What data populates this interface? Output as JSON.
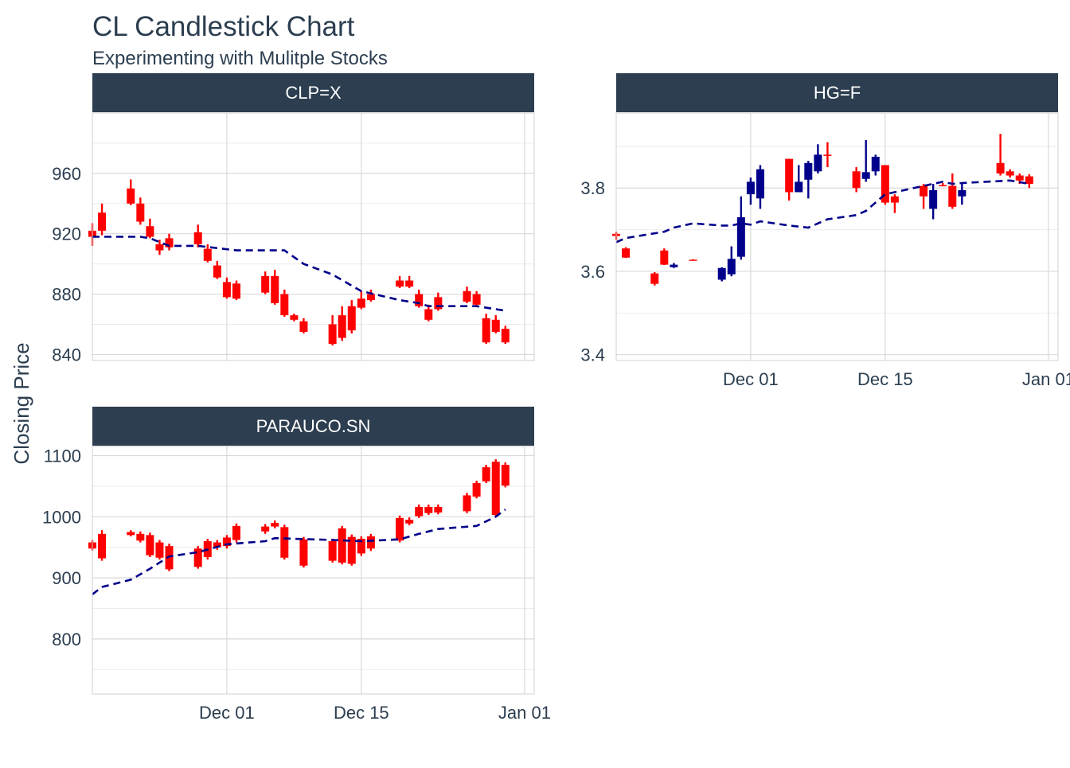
{
  "title": "CL Candlestick Chart",
  "subtitle": "Experimenting with Mulitple Stocks",
  "ylabel": "Closing Price",
  "x_ticks": [
    "Dec 01",
    "Dec 15",
    "Jan 01"
  ],
  "colors": {
    "up": "#00008B",
    "down": "#FF0000",
    "ma": "#00008B",
    "strip": "#2C3E50",
    "grid": "#D9D9D9",
    "text": "#2C3E50"
  },
  "chart_data": [
    {
      "type": "candlestick",
      "facet": "CLP=X",
      "x_type": "date",
      "ylim": [
        836,
        1000
      ],
      "y_ticks": [
        840,
        880,
        920,
        960
      ],
      "x_range": [
        "2020-11-17",
        "2021-01-02"
      ],
      "candles": [
        {
          "d": "2020-11-17",
          "o": 922,
          "h": 927,
          "l": 912,
          "c": 918
        },
        {
          "d": "2020-11-18",
          "o": 934,
          "h": 940,
          "l": 919,
          "c": 922
        },
        {
          "d": "2020-11-21",
          "o": 950,
          "h": 956,
          "l": 939,
          "c": 940
        },
        {
          "d": "2020-11-22",
          "o": 940,
          "h": 944,
          "l": 926,
          "c": 928
        },
        {
          "d": "2020-11-23",
          "o": 925,
          "h": 930,
          "l": 917,
          "c": 918
        },
        {
          "d": "2020-11-24",
          "o": 913,
          "h": 916,
          "l": 906,
          "c": 909
        },
        {
          "d": "2020-11-25",
          "o": 917,
          "h": 920,
          "l": 909,
          "c": 911
        },
        {
          "d": "2020-11-28",
          "o": 921,
          "h": 926,
          "l": 911,
          "c": 913
        },
        {
          "d": "2020-11-29",
          "o": 910,
          "h": 913,
          "l": 901,
          "c": 902
        },
        {
          "d": "2020-11-30",
          "o": 899,
          "h": 902,
          "l": 890,
          "c": 891
        },
        {
          "d": "2020-12-01",
          "o": 888,
          "h": 891,
          "l": 877,
          "c": 878
        },
        {
          "d": "2020-12-02",
          "o": 887,
          "h": 889,
          "l": 876,
          "c": 877
        },
        {
          "d": "2020-12-05",
          "o": 892,
          "h": 895,
          "l": 880,
          "c": 881
        },
        {
          "d": "2020-12-06",
          "o": 892,
          "h": 896,
          "l": 873,
          "c": 874
        },
        {
          "d": "2020-12-07",
          "o": 880,
          "h": 883,
          "l": 865,
          "c": 866
        },
        {
          "d": "2020-12-08",
          "o": 866,
          "h": 867,
          "l": 862,
          "c": 863
        },
        {
          "d": "2020-12-09",
          "o": 862,
          "h": 864,
          "l": 854,
          "c": 855
        },
        {
          "d": "2020-12-12",
          "o": 860,
          "h": 866,
          "l": 846,
          "c": 847
        },
        {
          "d": "2020-12-13",
          "o": 866,
          "h": 872,
          "l": 849,
          "c": 851
        },
        {
          "d": "2020-12-14",
          "o": 872,
          "h": 876,
          "l": 854,
          "c": 856
        },
        {
          "d": "2020-12-15",
          "o": 877,
          "h": 882,
          "l": 870,
          "c": 871
        },
        {
          "d": "2020-12-16",
          "o": 880,
          "h": 883,
          "l": 875,
          "c": 876
        },
        {
          "d": "2020-12-19",
          "o": 889,
          "h": 892,
          "l": 884,
          "c": 885
        },
        {
          "d": "2020-12-20",
          "o": 889,
          "h": 892,
          "l": 884,
          "c": 885
        },
        {
          "d": "2020-12-21",
          "o": 880,
          "h": 883,
          "l": 871,
          "c": 872
        },
        {
          "d": "2020-12-22",
          "o": 870,
          "h": 873,
          "l": 862,
          "c": 863
        },
        {
          "d": "2020-12-23",
          "o": 878,
          "h": 881,
          "l": 869,
          "c": 870
        },
        {
          "d": "2020-12-26",
          "o": 882,
          "h": 885,
          "l": 874,
          "c": 875
        },
        {
          "d": "2020-12-27",
          "o": 880,
          "h": 882,
          "l": 872,
          "c": 873
        },
        {
          "d": "2020-12-28",
          "o": 864,
          "h": 867,
          "l": 847,
          "c": 848
        },
        {
          "d": "2020-12-29",
          "o": 863,
          "h": 866,
          "l": 854,
          "c": 855
        },
        {
          "d": "2020-12-30",
          "o": 857,
          "h": 859,
          "l": 847,
          "c": 848
        }
      ],
      "moving_average": [
        {
          "d": "2020-11-17",
          "v": 918
        },
        {
          "d": "2020-11-18",
          "v": 918
        },
        {
          "d": "2020-11-22",
          "v": 918
        },
        {
          "d": "2020-11-23",
          "v": 917
        },
        {
          "d": "2020-11-25",
          "v": 912
        },
        {
          "d": "2020-11-28",
          "v": 912
        },
        {
          "d": "2020-12-02",
          "v": 909
        },
        {
          "d": "2020-12-05",
          "v": 909
        },
        {
          "d": "2020-12-07",
          "v": 909
        },
        {
          "d": "2020-12-09",
          "v": 900
        },
        {
          "d": "2020-12-12",
          "v": 893
        },
        {
          "d": "2020-12-15",
          "v": 882
        },
        {
          "d": "2020-12-19",
          "v": 876
        },
        {
          "d": "2020-12-21",
          "v": 874
        },
        {
          "d": "2020-12-22",
          "v": 872
        },
        {
          "d": "2020-12-27",
          "v": 872
        },
        {
          "d": "2020-12-29",
          "v": 870
        },
        {
          "d": "2020-12-30",
          "v": 869
        }
      ]
    },
    {
      "type": "candlestick",
      "facet": "HG=F",
      "x_type": "date",
      "ylim": [
        3.386,
        3.98
      ],
      "y_ticks": [
        3.4,
        3.6,
        3.8
      ],
      "x_range": [
        "2020-11-17",
        "2021-01-02"
      ],
      "candles": [
        {
          "d": "2020-11-17",
          "o": 3.69,
          "h": 3.695,
          "l": 3.675,
          "c": 3.685
        },
        {
          "d": "2020-11-18",
          "o": 3.655,
          "h": 3.658,
          "l": 3.632,
          "c": 3.633
        },
        {
          "d": "2020-11-21",
          "o": 3.595,
          "h": 3.598,
          "l": 3.566,
          "c": 3.57
        },
        {
          "d": "2020-11-22",
          "o": 3.65,
          "h": 3.655,
          "l": 3.615,
          "c": 3.616
        },
        {
          "d": "2020-11-23",
          "o": 3.61,
          "h": 3.62,
          "l": 3.608,
          "c": 3.616
        },
        {
          "d": "2020-11-25",
          "o": 3.628,
          "h": 3.629,
          "l": 3.626,
          "c": 3.627
        },
        {
          "d": "2020-11-28",
          "o": 3.58,
          "h": 3.61,
          "l": 3.576,
          "c": 3.608
        },
        {
          "d": "2020-11-29",
          "o": 3.593,
          "h": 3.66,
          "l": 3.588,
          "c": 3.63
        },
        {
          "d": "2020-11-30",
          "o": 3.635,
          "h": 3.78,
          "l": 3.628,
          "c": 3.73
        },
        {
          "d": "2020-12-01",
          "o": 3.785,
          "h": 3.825,
          "l": 3.76,
          "c": 3.815
        },
        {
          "d": "2020-12-02",
          "o": 3.775,
          "h": 3.855,
          "l": 3.75,
          "c": 3.845
        },
        {
          "d": "2020-12-05",
          "o": 3.87,
          "h": 3.87,
          "l": 3.77,
          "c": 3.79
        },
        {
          "d": "2020-12-06",
          "o": 3.79,
          "h": 3.855,
          "l": 3.79,
          "c": 3.815
        },
        {
          "d": "2020-12-07",
          "o": 3.82,
          "h": 3.865,
          "l": 3.775,
          "c": 3.86
        },
        {
          "d": "2020-12-08",
          "o": 3.84,
          "h": 3.905,
          "l": 3.835,
          "c": 3.88
        },
        {
          "d": "2020-12-09",
          "o": 3.88,
          "h": 3.91,
          "l": 3.85,
          "c": 3.877
        },
        {
          "d": "2020-12-12",
          "o": 3.84,
          "h": 3.85,
          "l": 3.79,
          "c": 3.8
        },
        {
          "d": "2020-12-13",
          "o": 3.822,
          "h": 3.915,
          "l": 3.815,
          "c": 3.838
        },
        {
          "d": "2020-12-14",
          "o": 3.84,
          "h": 3.88,
          "l": 3.83,
          "c": 3.875
        },
        {
          "d": "2020-12-15",
          "o": 3.855,
          "h": 3.855,
          "l": 3.76,
          "c": 3.765
        },
        {
          "d": "2020-12-16",
          "o": 3.78,
          "h": 3.785,
          "l": 3.74,
          "c": 3.765
        },
        {
          "d": "2020-12-19",
          "o": 3.805,
          "h": 3.81,
          "l": 3.75,
          "c": 3.78
        },
        {
          "d": "2020-12-20",
          "o": 3.75,
          "h": 3.81,
          "l": 3.725,
          "c": 3.795
        },
        {
          "d": "2020-12-21",
          "o": 3.807,
          "h": 3.812,
          "l": 3.804,
          "c": 3.806
        },
        {
          "d": "2020-12-22",
          "o": 3.805,
          "h": 3.835,
          "l": 3.75,
          "c": 3.755
        },
        {
          "d": "2020-12-23",
          "o": 3.78,
          "h": 3.81,
          "l": 3.76,
          "c": 3.795
        },
        {
          "d": "2020-12-27",
          "o": 3.86,
          "h": 3.93,
          "l": 3.83,
          "c": 3.835
        },
        {
          "d": "2020-12-28",
          "o": 3.84,
          "h": 3.845,
          "l": 3.825,
          "c": 3.83
        },
        {
          "d": "2020-12-29",
          "o": 3.83,
          "h": 3.835,
          "l": 3.81,
          "c": 3.818
        },
        {
          "d": "2020-12-30",
          "o": 3.828,
          "h": 3.833,
          "l": 3.8,
          "c": 3.81
        }
      ],
      "moving_average": [
        {
          "d": "2020-11-17",
          "v": 3.67
        },
        {
          "d": "2020-11-18",
          "v": 3.68
        },
        {
          "d": "2020-11-22",
          "v": 3.695
        },
        {
          "d": "2020-11-23",
          "v": 3.705
        },
        {
          "d": "2020-11-25",
          "v": 3.715
        },
        {
          "d": "2020-11-28",
          "v": 3.71
        },
        {
          "d": "2020-11-29",
          "v": 3.71
        },
        {
          "d": "2020-11-30",
          "v": 3.715
        },
        {
          "d": "2020-12-01",
          "v": 3.712
        },
        {
          "d": "2020-12-02",
          "v": 3.72
        },
        {
          "d": "2020-12-05",
          "v": 3.71
        },
        {
          "d": "2020-12-07",
          "v": 3.705
        },
        {
          "d": "2020-12-09",
          "v": 3.725
        },
        {
          "d": "2020-12-12",
          "v": 3.735
        },
        {
          "d": "2020-12-13",
          "v": 3.745
        },
        {
          "d": "2020-12-15",
          "v": 3.785
        },
        {
          "d": "2020-12-19",
          "v": 3.805
        },
        {
          "d": "2020-12-21",
          "v": 3.815
        },
        {
          "d": "2020-12-22",
          "v": 3.81
        },
        {
          "d": "2020-12-23",
          "v": 3.812
        },
        {
          "d": "2020-12-28",
          "v": 3.818
        },
        {
          "d": "2020-12-29",
          "v": 3.814
        },
        {
          "d": "2020-12-30",
          "v": 3.81
        }
      ]
    },
    {
      "type": "candlestick",
      "facet": "PARAUCO.SN",
      "x_type": "date",
      "ylim": [
        710,
        1115
      ],
      "y_ticks": [
        800,
        900,
        1000,
        1100
      ],
      "x_range": [
        "2020-11-17",
        "2021-01-02"
      ],
      "candles": [
        {
          "d": "2020-11-17",
          "o": 958,
          "h": 962,
          "l": 945,
          "c": 948
        },
        {
          "d": "2020-11-18",
          "o": 972,
          "h": 978,
          "l": 928,
          "c": 932
        },
        {
          "d": "2020-11-21",
          "o": 975,
          "h": 978,
          "l": 968,
          "c": 970
        },
        {
          "d": "2020-11-22",
          "o": 972,
          "h": 976,
          "l": 958,
          "c": 961
        },
        {
          "d": "2020-11-23",
          "o": 970,
          "h": 974,
          "l": 934,
          "c": 937
        },
        {
          "d": "2020-11-24",
          "o": 958,
          "h": 962,
          "l": 930,
          "c": 933
        },
        {
          "d": "2020-11-25",
          "o": 952,
          "h": 956,
          "l": 911,
          "c": 914
        },
        {
          "d": "2020-11-28",
          "o": 948,
          "h": 952,
          "l": 915,
          "c": 918
        },
        {
          "d": "2020-11-29",
          "o": 960,
          "h": 964,
          "l": 930,
          "c": 934
        },
        {
          "d": "2020-11-30",
          "o": 958,
          "h": 962,
          "l": 946,
          "c": 950
        },
        {
          "d": "2020-12-01",
          "o": 966,
          "h": 970,
          "l": 948,
          "c": 952
        },
        {
          "d": "2020-12-02",
          "o": 985,
          "h": 989,
          "l": 958,
          "c": 962
        },
        {
          "d": "2020-12-05",
          "o": 984,
          "h": 988,
          "l": 972,
          "c": 976
        },
        {
          "d": "2020-12-06",
          "o": 990,
          "h": 994,
          "l": 981,
          "c": 984
        },
        {
          "d": "2020-12-07",
          "o": 983,
          "h": 987,
          "l": 930,
          "c": 933
        },
        {
          "d": "2020-12-09",
          "o": 963,
          "h": 967,
          "l": 917,
          "c": 920
        },
        {
          "d": "2020-12-12",
          "o": 960,
          "h": 964,
          "l": 925,
          "c": 928
        },
        {
          "d": "2020-12-13",
          "o": 981,
          "h": 985,
          "l": 922,
          "c": 925
        },
        {
          "d": "2020-12-14",
          "o": 967,
          "h": 971,
          "l": 920,
          "c": 923
        },
        {
          "d": "2020-12-15",
          "o": 964,
          "h": 968,
          "l": 936,
          "c": 940
        },
        {
          "d": "2020-12-16",
          "o": 968,
          "h": 972,
          "l": 944,
          "c": 948
        },
        {
          "d": "2020-12-19",
          "o": 998,
          "h": 1002,
          "l": 958,
          "c": 961
        },
        {
          "d": "2020-12-20",
          "o": 995,
          "h": 999,
          "l": 986,
          "c": 989
        },
        {
          "d": "2020-12-21",
          "o": 1016,
          "h": 1020,
          "l": 998,
          "c": 1001
        },
        {
          "d": "2020-12-22",
          "o": 1016,
          "h": 1020,
          "l": 1003,
          "c": 1006
        },
        {
          "d": "2020-12-23",
          "o": 1016,
          "h": 1020,
          "l": 1004,
          "c": 1007
        },
        {
          "d": "2020-12-26",
          "o": 1035,
          "h": 1039,
          "l": 1006,
          "c": 1009
        },
        {
          "d": "2020-12-27",
          "o": 1055,
          "h": 1059,
          "l": 1030,
          "c": 1033
        },
        {
          "d": "2020-12-28",
          "o": 1081,
          "h": 1085,
          "l": 1055,
          "c": 1058
        },
        {
          "d": "2020-12-29",
          "o": 1090,
          "h": 1094,
          "l": 1000,
          "c": 1003
        },
        {
          "d": "2020-12-30",
          "o": 1085,
          "h": 1089,
          "l": 1048,
          "c": 1051
        }
      ],
      "moving_average": [
        {
          "d": "2020-11-17",
          "v": 873
        },
        {
          "d": "2020-11-18",
          "v": 885
        },
        {
          "d": "2020-11-21",
          "v": 897
        },
        {
          "d": "2020-11-23",
          "v": 915
        },
        {
          "d": "2020-11-25",
          "v": 935
        },
        {
          "d": "2020-11-28",
          "v": 942
        },
        {
          "d": "2020-12-01",
          "v": 955
        },
        {
          "d": "2020-12-05",
          "v": 960
        },
        {
          "d": "2020-12-06",
          "v": 965
        },
        {
          "d": "2020-12-12",
          "v": 962
        },
        {
          "d": "2020-12-15",
          "v": 960
        },
        {
          "d": "2020-12-19",
          "v": 963
        },
        {
          "d": "2020-12-21",
          "v": 972
        },
        {
          "d": "2020-12-23",
          "v": 980
        },
        {
          "d": "2020-12-27",
          "v": 985
        },
        {
          "d": "2020-12-29",
          "v": 1000
        },
        {
          "d": "2020-12-30",
          "v": 1012
        }
      ]
    }
  ]
}
